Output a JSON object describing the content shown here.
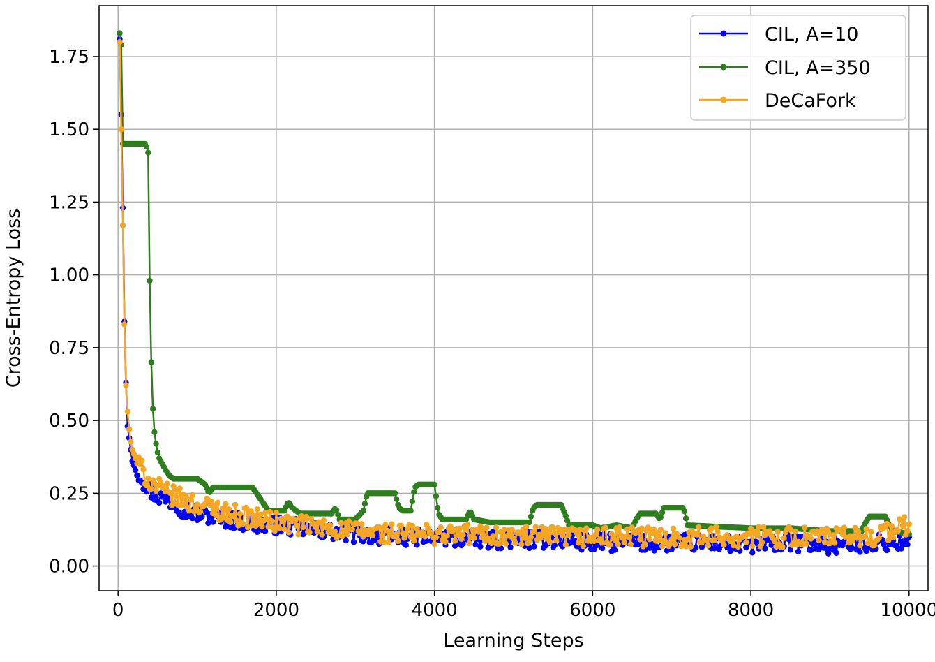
{
  "chart_data": {
    "type": "line",
    "title": "",
    "xlabel": "Learning Steps",
    "ylabel": "Cross-Entropy Loss",
    "xlim": [
      -240,
      10240
    ],
    "ylim": [
      -0.085,
      1.925
    ],
    "xticks": [
      0,
      2000,
      4000,
      6000,
      8000,
      10000
    ],
    "xtick_labels": [
      "0",
      "2000",
      "4000",
      "6000",
      "8000",
      "10000"
    ],
    "yticks": [
      0.0,
      0.25,
      0.5,
      0.75,
      1.0,
      1.25,
      1.5,
      1.75
    ],
    "ytick_labels": [
      "0.00",
      "0.25",
      "0.50",
      "0.75",
      "1.00",
      "1.25",
      "1.50",
      "1.75"
    ],
    "grid": true,
    "legend_position": "top-right",
    "series": [
      {
        "name": "CIL, A=10",
        "color": "#0000ff",
        "marker": "circle",
        "x": [
          20,
          40,
          60,
          80,
          100,
          120,
          150,
          180,
          220,
          260,
          300,
          350,
          400,
          450,
          500,
          600,
          700,
          800,
          900,
          1000,
          1200,
          1400,
          1600,
          1800,
          2000,
          2300,
          2600,
          3000,
          3500,
          4000,
          4500,
          5000,
          5500,
          6000,
          6500,
          7000,
          7500,
          8000,
          8500,
          9000,
          9500,
          10000
        ],
        "y": [
          1.81,
          1.55,
          1.23,
          0.84,
          0.63,
          0.48,
          0.42,
          0.36,
          0.33,
          0.32,
          0.3,
          0.28,
          0.26,
          0.25,
          0.24,
          0.23,
          0.22,
          0.2,
          0.19,
          0.18,
          0.17,
          0.16,
          0.15,
          0.14,
          0.14,
          0.13,
          0.12,
          0.11,
          0.1,
          0.1,
          0.09,
          0.09,
          0.09,
          0.08,
          0.08,
          0.08,
          0.08,
          0.07,
          0.08,
          0.07,
          0.08,
          0.08
        ]
      },
      {
        "name": "CIL, A=350",
        "color": "#2e7d1e",
        "marker": "circle",
        "x": [
          20,
          40,
          60,
          100,
          200,
          300,
          350,
          380,
          400,
          420,
          440,
          460,
          480,
          500,
          520,
          540,
          560,
          600,
          650,
          700,
          800,
          1000,
          1100,
          1150,
          1200,
          1300,
          1500,
          1700,
          1800,
          1850,
          1900,
          2000,
          2100,
          2150,
          2200,
          2300,
          2500,
          2700,
          2750,
          2800,
          3000,
          3100,
          3150,
          3200,
          3400,
          3500,
          3550,
          3600,
          3700,
          3750,
          3800,
          4000,
          4050,
          4100,
          4400,
          4450,
          4500,
          4700,
          5000,
          5200,
          5250,
          5300,
          5600,
          5650,
          5700,
          6000,
          6100,
          6300,
          6500,
          6550,
          6600,
          6800,
          6850,
          6900,
          7100,
          7150,
          7200,
          8000,
          8500,
          9000,
          9400,
          9450,
          9500,
          9700,
          9750,
          9800,
          10000
        ],
        "y": [
          1.83,
          1.79,
          1.45,
          1.45,
          1.45,
          1.45,
          1.45,
          1.42,
          0.98,
          0.7,
          0.54,
          0.46,
          0.42,
          0.39,
          0.37,
          0.36,
          0.35,
          0.33,
          0.31,
          0.3,
          0.3,
          0.3,
          0.28,
          0.25,
          0.27,
          0.27,
          0.27,
          0.27,
          0.23,
          0.21,
          0.19,
          0.19,
          0.19,
          0.22,
          0.2,
          0.18,
          0.18,
          0.18,
          0.2,
          0.16,
          0.16,
          0.19,
          0.25,
          0.25,
          0.25,
          0.25,
          0.2,
          0.19,
          0.19,
          0.27,
          0.28,
          0.28,
          0.18,
          0.16,
          0.16,
          0.19,
          0.16,
          0.15,
          0.15,
          0.15,
          0.2,
          0.21,
          0.21,
          0.18,
          0.14,
          0.14,
          0.13,
          0.14,
          0.13,
          0.16,
          0.18,
          0.18,
          0.16,
          0.2,
          0.2,
          0.2,
          0.14,
          0.13,
          0.13,
          0.12,
          0.12,
          0.15,
          0.17,
          0.17,
          0.14,
          0.12,
          0.11
        ]
      },
      {
        "name": "DeCaFork",
        "color": "#f5a623",
        "marker": "circle",
        "x": [
          20,
          40,
          60,
          80,
          100,
          120,
          150,
          180,
          220,
          260,
          300,
          350,
          400,
          450,
          500,
          600,
          700,
          800,
          900,
          1000,
          1200,
          1400,
          1600,
          1800,
          2000,
          2300,
          2600,
          3000,
          3500,
          4000,
          4500,
          5000,
          5500,
          6000,
          6500,
          7000,
          7500,
          8000,
          8500,
          9000,
          9500,
          10000
        ],
        "y": [
          1.8,
          1.5,
          1.17,
          0.83,
          0.62,
          0.53,
          0.44,
          0.4,
          0.37,
          0.35,
          0.33,
          0.31,
          0.29,
          0.28,
          0.27,
          0.25,
          0.24,
          0.23,
          0.22,
          0.21,
          0.2,
          0.18,
          0.17,
          0.16,
          0.15,
          0.14,
          0.13,
          0.12,
          0.11,
          0.11,
          0.11,
          0.1,
          0.1,
          0.1,
          0.1,
          0.1,
          0.1,
          0.1,
          0.1,
          0.1,
          0.1,
          0.14
        ]
      }
    ]
  }
}
